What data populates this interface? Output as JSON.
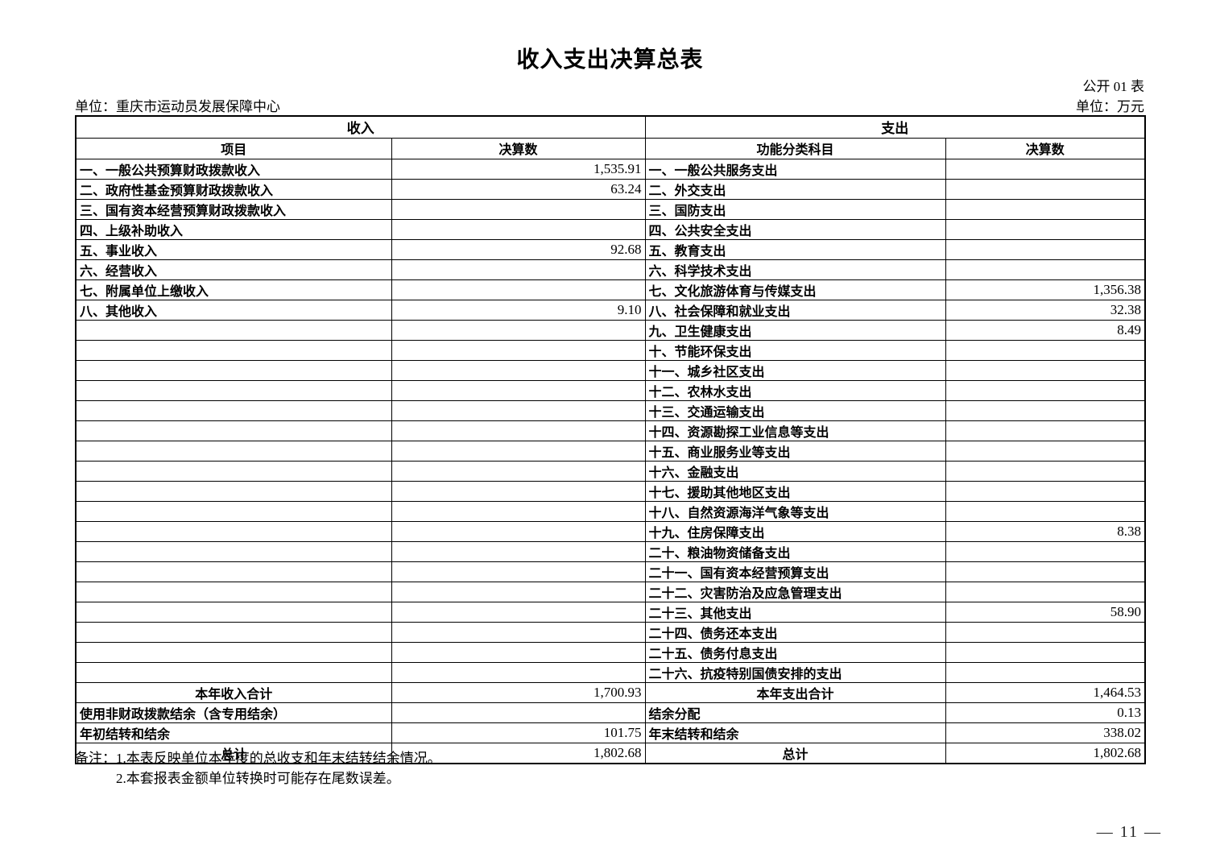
{
  "page": {
    "title": "收入支出决算总表",
    "form_code": "公开 01 表",
    "org_label": "单位：重庆市运动员发展保障中心",
    "unit_label": "单位：万元",
    "page_number": "— 11 —"
  },
  "table": {
    "income_header": "收入",
    "expense_header": "支出",
    "col_headers": {
      "income_item": "项目",
      "income_amount": "决算数",
      "expense_item": "功能分类科目",
      "expense_amount": "决算数"
    },
    "rows": [
      {
        "income_item": "一、一般公共预算财政拨款收入",
        "income_amount": "1,535.91",
        "expense_item": "一、一般公共服务支出",
        "expense_amount": ""
      },
      {
        "income_item": "二、政府性基金预算财政拨款收入",
        "income_amount": "63.24",
        "expense_item": "二、外交支出",
        "expense_amount": ""
      },
      {
        "income_item": "三、国有资本经营预算财政拨款收入",
        "income_amount": "",
        "expense_item": "三、国防支出",
        "expense_amount": ""
      },
      {
        "income_item": "四、上级补助收入",
        "income_amount": "",
        "expense_item": "四、公共安全支出",
        "expense_amount": ""
      },
      {
        "income_item": "五、事业收入",
        "income_amount": "92.68",
        "expense_item": "五、教育支出",
        "expense_amount": ""
      },
      {
        "income_item": "六、经营收入",
        "income_amount": "",
        "expense_item": "六、科学技术支出",
        "expense_amount": ""
      },
      {
        "income_item": "七、附属单位上缴收入",
        "income_amount": "",
        "expense_item": "七、文化旅游体育与传媒支出",
        "expense_amount": "1,356.38"
      },
      {
        "income_item": "八、其他收入",
        "income_amount": "9.10",
        "expense_item": "八、社会保障和就业支出",
        "expense_amount": "32.38"
      },
      {
        "income_item": "",
        "income_amount": "",
        "expense_item": "九、卫生健康支出",
        "expense_amount": "8.49"
      },
      {
        "income_item": "",
        "income_amount": "",
        "expense_item": "十、节能环保支出",
        "expense_amount": ""
      },
      {
        "income_item": "",
        "income_amount": "",
        "expense_item": "十一、城乡社区支出",
        "expense_amount": ""
      },
      {
        "income_item": "",
        "income_amount": "",
        "expense_item": "十二、农林水支出",
        "expense_amount": ""
      },
      {
        "income_item": "",
        "income_amount": "",
        "expense_item": "十三、交通运输支出",
        "expense_amount": ""
      },
      {
        "income_item": "",
        "income_amount": "",
        "expense_item": "十四、资源勘探工业信息等支出",
        "expense_amount": ""
      },
      {
        "income_item": "",
        "income_amount": "",
        "expense_item": "十五、商业服务业等支出",
        "expense_amount": ""
      },
      {
        "income_item": "",
        "income_amount": "",
        "expense_item": "十六、金融支出",
        "expense_amount": ""
      },
      {
        "income_item": "",
        "income_amount": "",
        "expense_item": "十七、援助其他地区支出",
        "expense_amount": ""
      },
      {
        "income_item": "",
        "income_amount": "",
        "expense_item": "十八、自然资源海洋气象等支出",
        "expense_amount": ""
      },
      {
        "income_item": "",
        "income_amount": "",
        "expense_item": "十九、住房保障支出",
        "expense_amount": "8.38"
      },
      {
        "income_item": "",
        "income_amount": "",
        "expense_item": "二十、粮油物资储备支出",
        "expense_amount": ""
      },
      {
        "income_item": "",
        "income_amount": "",
        "expense_item": "二十一、国有资本经营预算支出",
        "expense_amount": ""
      },
      {
        "income_item": "",
        "income_amount": "",
        "expense_item": "二十二、灾害防治及应急管理支出",
        "expense_amount": ""
      },
      {
        "income_item": "",
        "income_amount": "",
        "expense_item": "二十三、其他支出",
        "expense_amount": "58.90"
      },
      {
        "income_item": "",
        "income_amount": "",
        "expense_item": "二十四、债务还本支出",
        "expense_amount": ""
      },
      {
        "income_item": "",
        "income_amount": "",
        "expense_item": "二十五、债务付息支出",
        "expense_amount": ""
      },
      {
        "income_item": "",
        "income_amount": "",
        "expense_item": "二十六、抗疫特别国债安排的支出",
        "expense_amount": ""
      }
    ],
    "footer_rows": [
      {
        "income_item": "本年收入合计",
        "income_amount": "1,700.93",
        "expense_item": "本年支出合计",
        "expense_amount": "1,464.53",
        "center": true
      },
      {
        "income_item": "使用非财政拨款结余（含专用结余）",
        "income_amount": "",
        "expense_item": "结余分配",
        "expense_amount": "0.13",
        "center": false
      },
      {
        "income_item": "年初结转和结余",
        "income_amount": "101.75",
        "expense_item": "年末结转和结余",
        "expense_amount": "338.02",
        "center": false
      },
      {
        "income_item": "总计",
        "income_amount": "1,802.68",
        "expense_item": "总计",
        "expense_amount": "1,802.68",
        "center": true
      }
    ]
  },
  "notes": {
    "label": "备注：",
    "lines": [
      "1.本表反映单位本年度的总收支和年末结转结余情况。",
      "2.本套报表金额单位转换时可能存在尾数误差。"
    ]
  }
}
